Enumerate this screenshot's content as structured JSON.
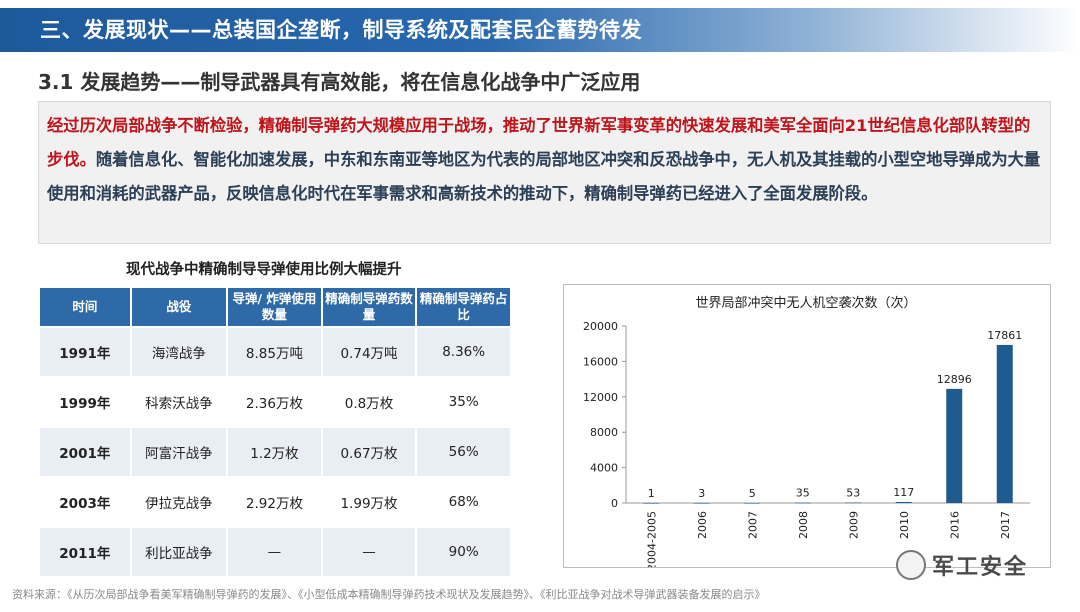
{
  "header": {
    "title": "三、发展现状——总装国企垄断，制导系统及配套民企蓄势待发"
  },
  "section": {
    "title": "3.1 发展趋势——制导武器具有高效能，将在信息化战争中广泛应用"
  },
  "summary": {
    "red_text": "经过历次局部战争不断检验，精确制导弹药大规模应用于战场，推动了世界新军事变革的快速发展和美军全面向21世纪信息化部队转型的步伐。",
    "blue_text": "随着信息化、智能化加速发展，中东和东南亚等地区为代表的局部地区冲突和反恐战争中，无人机及其挂载的小型空地导弹成为大量使用和消耗的武器产品，反映信息化时代在军事需求和高新技术的推动下，精确制导弹药已经进入了全面发展阶段。"
  },
  "table": {
    "caption": "现代战争中精确制导导弹使用比例大幅提升",
    "headers": [
      "时间",
      "战役",
      "导弹/ 炸弹使用数量",
      "精确制导弹药数量",
      "精确制导弹药占比"
    ],
    "rows": [
      [
        "1991年",
        "海湾战争",
        "8.85万吨",
        "0.74万吨",
        "8.36%"
      ],
      [
        "1999年",
        "科索沃战争",
        "2.36万枚",
        "0.8万枚",
        "35%"
      ],
      [
        "2001年",
        "阿富汗战争",
        "1.2万枚",
        "0.67万枚",
        "56%"
      ],
      [
        "2003年",
        "伊拉克战争",
        "2.92万枚",
        "1.99万枚",
        "68%"
      ],
      [
        "2011年",
        "利比亚战争",
        "—",
        "—",
        "90%"
      ]
    ]
  },
  "chart_data": {
    "type": "bar",
    "title": "世界局部冲突中无人机空袭次数（次）",
    "categories": [
      "2004-2005",
      "2006",
      "2007",
      "2008",
      "2009",
      "2010",
      "2016",
      "2017"
    ],
    "values": [
      1,
      3,
      5,
      35,
      53,
      117,
      12896,
      17861
    ],
    "yticks": [
      0,
      4000,
      8000,
      12000,
      16000,
      20000
    ],
    "ylim": [
      0,
      20000
    ],
    "bar_color": "#1f5b8e",
    "grid": false,
    "legend": "none"
  },
  "watermark": {
    "text": "军工安全"
  },
  "source": {
    "text": "资料来源：《从历次局部战争看美军精确制导弹药的发展》、《小型低成本精确制导弹药技术现状及发展趋势》、《利比亚战争对战术导弹武器装备发展的启示》"
  }
}
